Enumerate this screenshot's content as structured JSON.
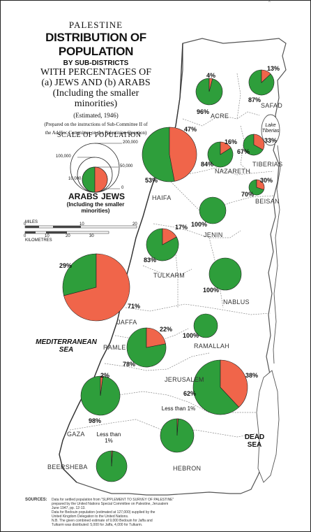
{
  "title": {
    "line1": "PALESTINE",
    "line2": "DISTRIBUTION OF POPULATION",
    "line3": "BY SUB-DISTRICTS",
    "line4": "WITH PERCENTAGES OF",
    "line5": "(a) JEWS AND (b) ARABS",
    "line6": "(Including the smaller",
    "line7": "minorities)",
    "estimated": "(Estimated, 1946)",
    "note_1": "(Prepared on the instructions of Sub-Committee II of",
    "note_2": "the Ad Hoc Committee on the Palestinian Question)"
  },
  "legend": {
    "scale_title": "SCALE OF POPULATION",
    "scale_values": [
      "200,000",
      "100,000",
      "50,000",
      "10,000",
      "0"
    ],
    "arabs_label": "ARABS",
    "jews_label": "JEWS",
    "including_line1": "(Including the smaller",
    "including_line2": "minorities)",
    "colors": {
      "arabs": "#2e9e3b",
      "jews": "#f0654a"
    }
  },
  "distance_scale": {
    "miles_label": "MILES",
    "km_label": "KILOMETRES",
    "miles_ticks": [
      "0",
      "10",
      "20"
    ],
    "km_ticks": [
      "0",
      "10",
      "20",
      "30"
    ]
  },
  "sea_labels": {
    "mediterranean_line1": "MEDITERRANEAN",
    "mediterranean_line2": "SEA",
    "dead_sea_line1": "DEAD",
    "dead_sea_line2": "SEA",
    "lake_line1": "Lake",
    "lake_line2": "Tiberias"
  },
  "districts": [
    {
      "name": "SAFAD",
      "jews_pct": 13,
      "arabs_pct": 87,
      "jews_label": "13%",
      "arabs_label": "87%"
    },
    {
      "name": "ACRE",
      "jews_pct": 4,
      "arabs_pct": 96,
      "jews_label": "4%",
      "arabs_label": "96%"
    },
    {
      "name": "HAIFA",
      "jews_pct": 47,
      "arabs_pct": 53,
      "jews_label": "47%",
      "arabs_label": "53%"
    },
    {
      "name": "NAZARETH",
      "jews_pct": 16,
      "arabs_pct": 84,
      "jews_label": "16%",
      "arabs_label": "84%"
    },
    {
      "name": "TIBERIAS",
      "jews_pct": 33,
      "arabs_pct": 67,
      "jews_label": "33%",
      "arabs_label": "67%"
    },
    {
      "name": "BEISAN",
      "jews_pct": 30,
      "arabs_pct": 70,
      "jews_label": "30%",
      "arabs_label": "70%"
    },
    {
      "name": "JENIN",
      "jews_pct": 0,
      "arabs_pct": 100,
      "jews_label": "",
      "arabs_label": "100%"
    },
    {
      "name": "TULKARM",
      "jews_pct": 17,
      "arabs_pct": 83,
      "jews_label": "17%",
      "arabs_label": "83%"
    },
    {
      "name": "NABLUS",
      "jews_pct": 0,
      "arabs_pct": 100,
      "jews_label": "",
      "arabs_label": "100%"
    },
    {
      "name": "JAFFA",
      "jews_pct": 71,
      "arabs_pct": 29,
      "jews_label": "71%",
      "arabs_label": "29%"
    },
    {
      "name": "RAMLE",
      "jews_pct": 22,
      "arabs_pct": 78,
      "jews_label": "22%",
      "arabs_label": "78%"
    },
    {
      "name": "RAMALLAH",
      "jews_pct": 0,
      "arabs_pct": 100,
      "jews_label": "",
      "arabs_label": "100%"
    },
    {
      "name": "JERUSALEM",
      "jews_pct": 38,
      "arabs_pct": 62,
      "jews_label": "38%",
      "arabs_label": "62%"
    },
    {
      "name": "GAZA",
      "jews_pct": 2,
      "arabs_pct": 98,
      "jews_label": "2%",
      "arabs_label": "98%"
    },
    {
      "name": "HEBRON",
      "jews_pct": 1,
      "arabs_pct": 99,
      "jews_label": "Less than 1%",
      "arabs_label": ""
    },
    {
      "name": "BEERSHEBA",
      "jews_pct": 1,
      "arabs_pct": 99,
      "jews_label": "Less than 1%",
      "arabs_label": ""
    }
  ],
  "sources": {
    "label": "SOURCES:",
    "line1": "Data for settled population from \"SUPPLEMENT TO SURVEY OF PALESTINE\"",
    "line2": "prepared by the United Nations Special Committee on Palestine, Jerusalem",
    "line3": "June 1947, pp. 12-13.",
    "line4": "Data for Bedouin population (estimated at 127,000) supplied by the",
    "line5": "United Kingdom Delegation to the United Nations.",
    "line6": "N.B. The given combined estimate of 9,000 Bedouin for Jaffa and",
    "line7": "Tulkarm was distributed: 5,000 for Jaffa, 4,000 for Tulkarm."
  }
}
